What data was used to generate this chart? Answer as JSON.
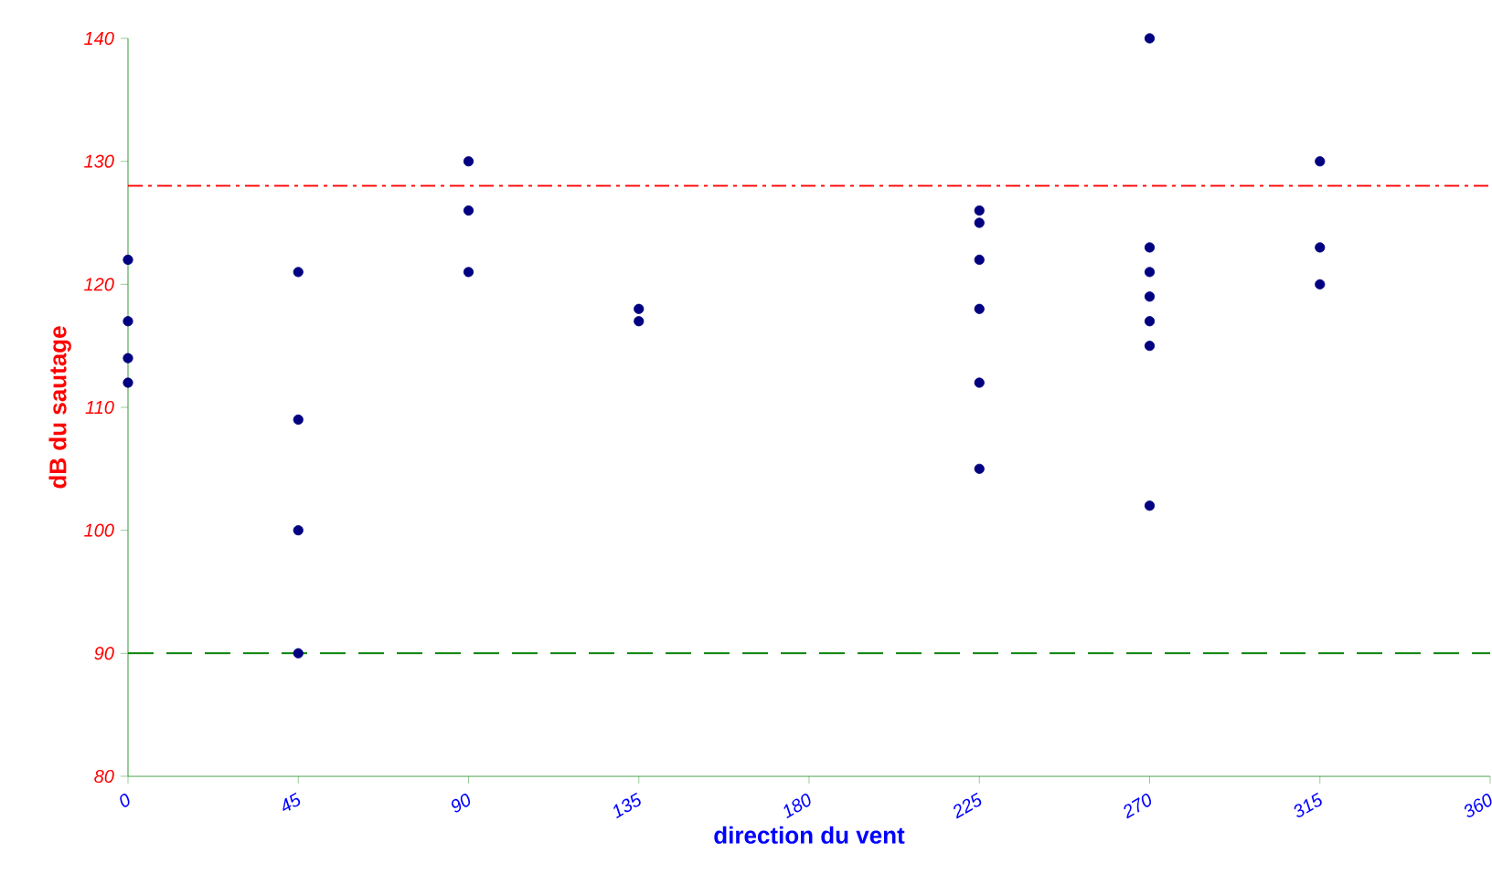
{
  "chart_data": {
    "type": "scatter",
    "xlabel": "direction du vent",
    "ylabel": "dB du sautage",
    "x": [
      0,
      0,
      0,
      0,
      45,
      45,
      45,
      45,
      90,
      90,
      90,
      135,
      135,
      225,
      225,
      225,
      225,
      225,
      225,
      270,
      270,
      270,
      270,
      270,
      270,
      270,
      315,
      315,
      315
    ],
    "values": [
      122,
      117,
      114,
      112,
      121,
      109,
      100,
      90,
      130,
      126,
      121,
      118,
      117,
      126,
      125,
      122,
      118,
      112,
      105,
      140,
      123,
      121,
      119,
      117,
      115,
      102,
      130,
      123,
      120
    ],
    "color": "#000080",
    "marker": "circle",
    "xlim": [
      0,
      360
    ],
    "xticks": [
      0,
      45,
      90,
      135,
      180,
      225,
      270,
      315,
      360
    ],
    "ylim": [
      80,
      140
    ],
    "yticks": [
      80,
      90,
      100,
      110,
      120,
      130,
      140
    ],
    "ref_lines": [
      {
        "axis": "y",
        "value": 128,
        "color": "#ff0000",
        "line_style": "dashdot"
      },
      {
        "axis": "y",
        "value": 90,
        "color": "#008000",
        "line_style": "dashed"
      }
    ]
  }
}
